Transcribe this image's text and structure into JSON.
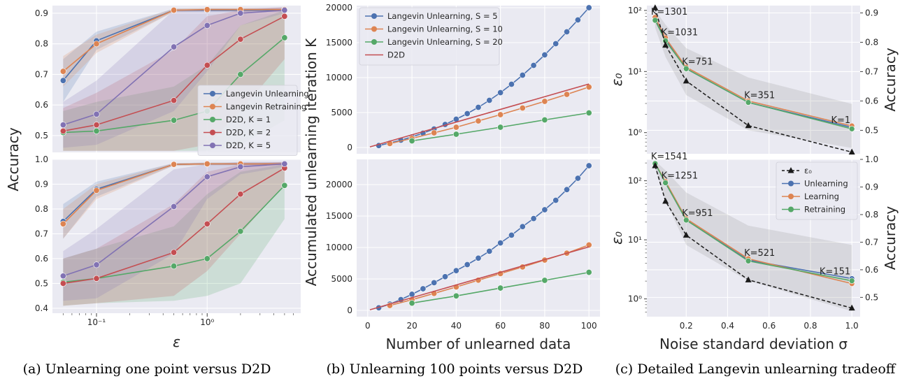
{
  "colors": {
    "blue": "#4c72b0",
    "orange": "#dd8452",
    "green": "#55a868",
    "red": "#c44e52",
    "purple": "#8172b3",
    "black": "#1a1a1a",
    "panel": "#eaeaf2"
  },
  "captions": {
    "a": "(a) Unlearning one point versus D2D",
    "b": "(b) Unlearning 100 points versus D2D",
    "c": "(c) Detailed Langevin unlearning tradeoff"
  },
  "chart_data": [
    {
      "id": "a_top",
      "type": "line",
      "xscale": "log",
      "xlim": [
        0.04,
        7
      ],
      "ylim": [
        0.445,
        0.925
      ],
      "xticks": [
        0.1,
        1
      ],
      "xtick_labels": [
        "",
        ""
      ],
      "yticks": [
        0.5,
        0.6,
        0.7,
        0.8,
        0.9
      ],
      "ytick_labels": [
        "0.5",
        "0.6",
        "0.7",
        "0.8",
        "0.9"
      ],
      "x": [
        0.05,
        0.1,
        0.5,
        1,
        2,
        5
      ],
      "legend_position": "lower-right",
      "series": [
        {
          "name": "Langevin Unlearning",
          "color": "blue",
          "values": [
            0.68,
            0.81,
            0.91,
            0.91,
            0.91,
            0.91
          ],
          "lower": [
            0.61,
            0.78,
            0.905,
            0.905,
            0.905,
            0.905
          ],
          "upper": [
            0.75,
            0.84,
            0.915,
            0.915,
            0.915,
            0.915
          ]
        },
        {
          "name": "Langevin Retraining",
          "color": "orange",
          "values": [
            0.71,
            0.8,
            0.91,
            0.912,
            0.912,
            0.912
          ],
          "lower": [
            0.66,
            0.77,
            0.905,
            0.907,
            0.907,
            0.907
          ],
          "upper": [
            0.76,
            0.83,
            0.915,
            0.917,
            0.917,
            0.917
          ]
        },
        {
          "name": "D2D, K = 1",
          "color": "green",
          "values": [
            0.51,
            0.515,
            0.55,
            0.58,
            0.7,
            0.82
          ],
          "lower": [
            0.45,
            0.45,
            0.45,
            0.45,
            0.47,
            0.55
          ],
          "upper": [
            0.58,
            0.61,
            0.66,
            0.73,
            0.86,
            0.91
          ]
        },
        {
          "name": "D2D, K = 2",
          "color": "red",
          "values": [
            0.515,
            0.535,
            0.615,
            0.73,
            0.815,
            0.89
          ],
          "lower": [
            0.45,
            0.45,
            0.45,
            0.47,
            0.58,
            0.75
          ],
          "upper": [
            0.59,
            0.64,
            0.78,
            0.89,
            0.91,
            0.92
          ]
        },
        {
          "name": "D2D, K = 5",
          "color": "purple",
          "values": [
            0.535,
            0.57,
            0.79,
            0.86,
            0.9,
            0.91
          ],
          "lower": [
            0.46,
            0.47,
            0.58,
            0.71,
            0.86,
            0.9
          ],
          "upper": [
            0.61,
            0.68,
            0.91,
            0.915,
            0.915,
            0.92
          ]
        }
      ]
    },
    {
      "id": "a_bottom",
      "type": "line",
      "xscale": "log",
      "xlim": [
        0.04,
        7
      ],
      "ylim": [
        0.38,
        1.0
      ],
      "xticks": [
        0.1,
        1
      ],
      "xtick_labels": [
        "10⁻¹",
        "10⁰"
      ],
      "yticks": [
        0.4,
        0.5,
        0.6,
        0.7,
        0.8,
        0.9,
        1.0
      ],
      "ytick_labels": [
        "0.4",
        "0.5",
        "0.6",
        "0.7",
        "0.8",
        "0.9",
        "1.0"
      ],
      "xlabel": "ε",
      "shared_ylabel": "Accuracy",
      "x": [
        0.05,
        0.1,
        0.5,
        1,
        2,
        5
      ],
      "series": [
        {
          "color": "blue",
          "values": [
            0.75,
            0.88,
            0.98,
            0.982,
            0.982,
            0.982
          ],
          "lower": [
            0.68,
            0.85,
            0.975,
            0.977,
            0.977,
            0.977
          ],
          "upper": [
            0.82,
            0.91,
            0.985,
            0.987,
            0.987,
            0.987
          ]
        },
        {
          "color": "orange",
          "values": [
            0.74,
            0.875,
            0.98,
            0.982,
            0.982,
            0.982
          ],
          "lower": [
            0.68,
            0.84,
            0.975,
            0.977,
            0.977,
            0.977
          ],
          "upper": [
            0.8,
            0.9,
            0.985,
            0.987,
            0.987,
            0.987
          ]
        },
        {
          "color": "green",
          "values": [
            0.505,
            0.52,
            0.57,
            0.6,
            0.71,
            0.895
          ],
          "lower": [
            0.41,
            0.42,
            0.43,
            0.45,
            0.5,
            0.76
          ],
          "upper": [
            0.6,
            0.64,
            0.73,
            0.86,
            0.95,
            0.98
          ]
        },
        {
          "color": "red",
          "values": [
            0.5,
            0.52,
            0.625,
            0.74,
            0.86,
            0.965
          ],
          "lower": [
            0.41,
            0.42,
            0.45,
            0.55,
            0.7,
            0.9
          ],
          "upper": [
            0.6,
            0.64,
            0.82,
            0.95,
            0.98,
            0.99
          ]
        },
        {
          "color": "purple",
          "values": [
            0.53,
            0.575,
            0.81,
            0.93,
            0.97,
            0.982
          ],
          "lower": [
            0.43,
            0.44,
            0.62,
            0.84,
            0.94,
            0.97
          ],
          "upper": [
            0.63,
            0.72,
            0.96,
            0.98,
            0.99,
            0.99
          ]
        }
      ]
    },
    {
      "id": "b_top",
      "type": "line",
      "xlim": [
        -5,
        105
      ],
      "ylim": [
        -900,
        20300
      ],
      "xticks": [
        0,
        20,
        40,
        60,
        80,
        100
      ],
      "xtick_labels": [
        "",
        "",
        "",
        "",
        "",
        ""
      ],
      "yticks": [
        0,
        5000,
        10000,
        15000,
        20000
      ],
      "ytick_labels": [
        "0",
        "5000",
        "10000",
        "15000",
        "20000"
      ],
      "legend_position": "upper-left",
      "series": [
        {
          "name": "Langevin Unlearning, S = 5",
          "color": "blue",
          "x": [
            5,
            10,
            15,
            20,
            25,
            30,
            35,
            40,
            45,
            50,
            55,
            60,
            65,
            70,
            75,
            80,
            85,
            90,
            95,
            100
          ],
          "values": [
            280,
            650,
            1050,
            1520,
            2050,
            2650,
            3300,
            4050,
            4850,
            5750,
            6750,
            7850,
            9050,
            10350,
            11750,
            13250,
            14850,
            16550,
            18250,
            20000
          ]
        },
        {
          "name": "Langevin Unlearning, S = 10",
          "color": "orange",
          "x": [
            10,
            20,
            30,
            40,
            50,
            60,
            70,
            80,
            90,
            100
          ],
          "values": [
            560,
            1300,
            2100,
            2900,
            3800,
            4700,
            5650,
            6600,
            7600,
            8650
          ]
        },
        {
          "name": "Langevin Unlearning, S = 20",
          "color": "green",
          "x": [
            20,
            40,
            60,
            80,
            100
          ],
          "values": [
            950,
            1900,
            2900,
            3950,
            4950
          ]
        },
        {
          "name": "D2D",
          "color": "red",
          "marker": "none",
          "x": [
            1,
            100
          ],
          "values": [
            90,
            9090
          ]
        }
      ]
    },
    {
      "id": "b_bottom",
      "type": "line",
      "xlim": [
        -5,
        105
      ],
      "ylim": [
        -1000,
        24000
      ],
      "xticks": [
        0,
        20,
        40,
        60,
        80,
        100
      ],
      "xtick_labels": [
        "0",
        "20",
        "40",
        "60",
        "80",
        "100"
      ],
      "yticks": [
        0,
        5000,
        10000,
        15000,
        20000
      ],
      "ytick_labels": [
        "0",
        "5000",
        "10000",
        "15000",
        "20000"
      ],
      "xlabel": "Number of unlearned data",
      "shared_ylabel": "Accumulated unlearning iteration K",
      "series": [
        {
          "color": "blue",
          "x": [
            5,
            10,
            15,
            20,
            25,
            30,
            35,
            40,
            45,
            50,
            55,
            60,
            65,
            70,
            75,
            80,
            85,
            90,
            95,
            100
          ],
          "values": [
            420,
            1000,
            1720,
            2560,
            3440,
            4400,
            5360,
            6320,
            7280,
            8300,
            9400,
            10720,
            11960,
            13320,
            14600,
            16000,
            17500,
            19200,
            21000,
            23000
          ]
        },
        {
          "color": "orange",
          "x": [
            10,
            20,
            30,
            40,
            50,
            60,
            70,
            80,
            90,
            100
          ],
          "values": [
            780,
            1700,
            2700,
            3720,
            4800,
            5850,
            6900,
            8000,
            9100,
            10400
          ]
        },
        {
          "color": "green",
          "x": [
            20,
            40,
            60,
            80,
            100
          ],
          "values": [
            1150,
            2300,
            3550,
            4780,
            6050
          ]
        },
        {
          "color": "red",
          "marker": "none",
          "x": [
            1,
            100
          ],
          "values": [
            100,
            10100
          ]
        }
      ]
    },
    {
      "id": "c_top",
      "type": "line",
      "xlim": [
        0.01,
        1.04
      ],
      "left_axis": {
        "scale": "log",
        "lim": [
          0.45,
          120
        ],
        "label": "ε₀",
        "ticks": [
          1,
          10,
          100
        ],
        "tick_labels": [
          "10⁰",
          "10¹",
          "10²"
        ]
      },
      "right_axis": {
        "lim": [
          0.42,
          0.925
        ],
        "label": "Accuracy",
        "ticks": [
          0.5,
          0.6,
          0.7,
          0.8,
          0.9
        ],
        "tick_labels": [
          "0.5",
          "0.6",
          "0.7",
          "0.8",
          "0.9"
        ]
      },
      "xticks": [
        0.2,
        0.4,
        0.6,
        0.8,
        1.0
      ],
      "xtick_labels": [
        "",
        "",
        "",
        "",
        ""
      ],
      "x": [
        0.05,
        0.1,
        0.2,
        0.5,
        1.0
      ],
      "epsilon0": [
        110,
        27,
        7,
        1.3,
        0.48
      ],
      "accuracy_series": [
        {
          "color": "blue",
          "values": [
            0.88,
            0.81,
            0.71,
            0.595,
            0.51
          ]
        },
        {
          "color": "orange",
          "values": [
            0.885,
            0.815,
            0.715,
            0.6,
            0.515
          ]
        },
        {
          "color": "green",
          "values": [
            0.875,
            0.805,
            0.71,
            0.595,
            0.505
          ]
        }
      ],
      "band_lower": [
        0.85,
        0.75,
        0.62,
        0.5,
        0.44
      ],
      "band_upper": [
        0.91,
        0.86,
        0.78,
        0.68,
        0.59
      ],
      "annotations": [
        {
          "text": "K=1301",
          "x": 0.05,
          "acc": 0.88
        },
        {
          "text": "K=1031",
          "x": 0.1,
          "acc": 0.81
        },
        {
          "text": "K=751",
          "x": 0.2,
          "acc": 0.71
        },
        {
          "text": "K=351",
          "x": 0.5,
          "acc": 0.595
        },
        {
          "text": "K=1",
          "x": 1.0,
          "acc": 0.51
        }
      ]
    },
    {
      "id": "c_bottom",
      "type": "line",
      "xlim": [
        0.01,
        1.04
      ],
      "left_axis": {
        "scale": "log",
        "lim": [
          0.5,
          230
        ],
        "label": "ε₀",
        "ticks": [
          1,
          10,
          100
        ],
        "tick_labels": [
          "10⁰",
          "10¹",
          "10²"
        ]
      },
      "right_axis": {
        "lim": [
          0.43,
          1.0
        ],
        "label": "Accuracy",
        "ticks": [
          0.5,
          0.6,
          0.7,
          0.8,
          0.9,
          1.0
        ],
        "tick_labels": [
          "0.5",
          "0.6",
          "0.7",
          "0.8",
          "0.9",
          "1.0"
        ]
      },
      "xticks": [
        0.2,
        0.4,
        0.6,
        0.8,
        1.0
      ],
      "xtick_labels": [
        "0.2",
        "0.4",
        "0.6",
        "0.8",
        "1.0"
      ],
      "xlabel": "Noise standard deviation σ",
      "x": [
        0.05,
        0.1,
        0.2,
        0.5,
        1.0
      ],
      "epsilon0": [
        180,
        45,
        12,
        2.1,
        0.7
      ],
      "legend_position": "upper-right",
      "legend": [
        {
          "name": "ε₀",
          "color": "black",
          "style": "dashed-triangle"
        },
        {
          "name": "Unlearning",
          "color": "blue"
        },
        {
          "name": "Learning",
          "color": "orange"
        },
        {
          "name": "Retraining",
          "color": "green"
        }
      ],
      "accuracy_series": [
        {
          "color": "blue",
          "values": [
            0.985,
            0.915,
            0.78,
            0.635,
            0.568
          ]
        },
        {
          "color": "orange",
          "values": [
            0.985,
            0.92,
            0.785,
            0.64,
            0.55
          ]
        },
        {
          "color": "green",
          "values": [
            0.985,
            0.915,
            0.78,
            0.632,
            0.56
          ]
        }
      ],
      "band_lower": [
        0.97,
        0.85,
        0.69,
        0.56,
        0.45
      ],
      "band_upper": [
        0.995,
        0.96,
        0.88,
        0.76,
        0.69
      ],
      "annotations": [
        {
          "text": "K=1541",
          "x": 0.05,
          "acc": 0.985
        },
        {
          "text": "K=1251",
          "x": 0.1,
          "acc": 0.915
        },
        {
          "text": "K=951",
          "x": 0.2,
          "acc": 0.78
        },
        {
          "text": "K=521",
          "x": 0.5,
          "acc": 0.635
        },
        {
          "text": "K=151",
          "x": 1.0,
          "acc": 0.568
        }
      ]
    }
  ]
}
